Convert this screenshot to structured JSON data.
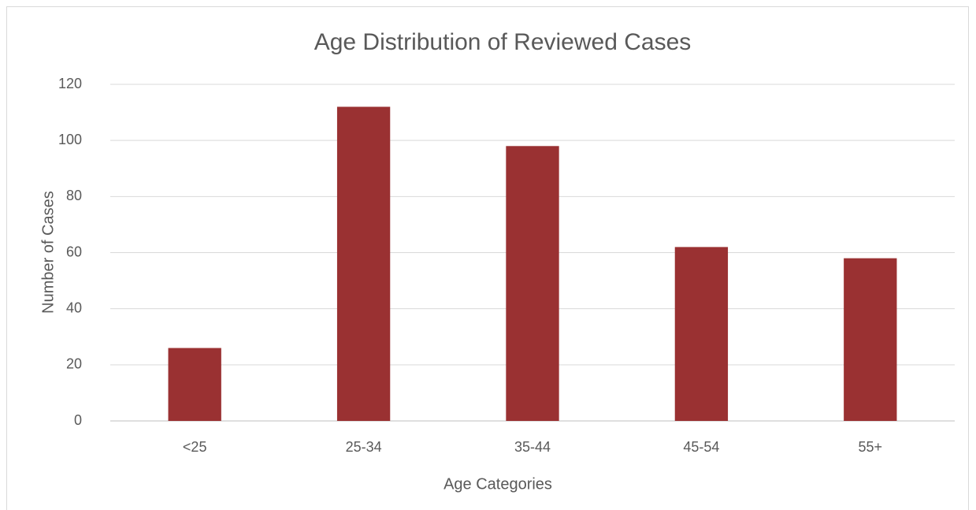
{
  "chart_data": {
    "type": "bar",
    "title": "Age Distribution of Reviewed Cases",
    "x_label": "Age Categories",
    "y_label": "Number of Cases",
    "categories": [
      "<25",
      "25-34",
      "35-44",
      "45-54",
      "55+"
    ],
    "values": [
      26,
      112,
      98,
      62,
      58
    ],
    "color": "#9a3132",
    "ylim": [
      0,
      120
    ],
    "yticks": [
      0,
      20,
      40,
      60,
      80,
      100,
      120
    ],
    "grid": true
  }
}
